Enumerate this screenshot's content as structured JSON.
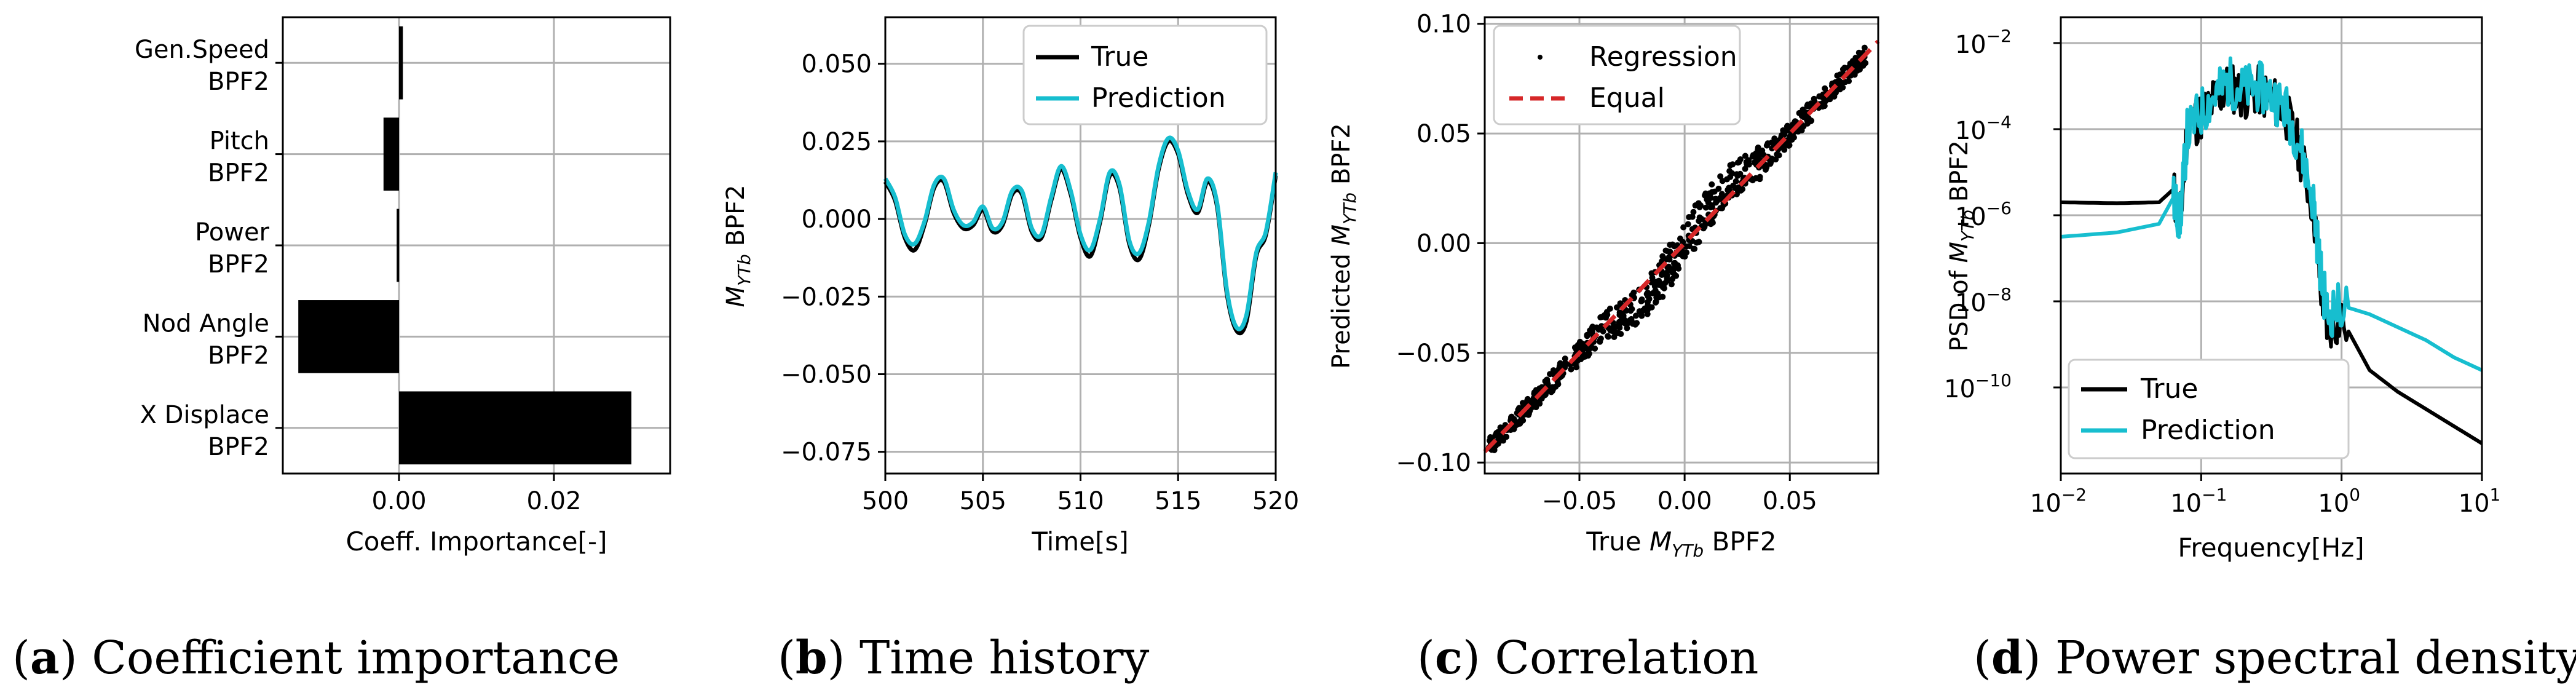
{
  "colors": {
    "true": "#000000",
    "prediction": "#17becf",
    "equal": "#d62728",
    "grid": "#b0b0b0"
  },
  "chart_data": [
    {
      "type": "bar",
      "orientation": "horizontal",
      "categories": [
        "Gen.Speed\nBPF2",
        "Pitch\nBPF2",
        "Power\nBPF2",
        "Nod Angle\nBPF2",
        "X Displace\nBPF2"
      ],
      "values": [
        0.0005,
        -0.002,
        -0.0003,
        -0.013,
        0.03
      ],
      "xlim": [
        -0.015,
        0.035
      ],
      "xticks": [
        "0.00",
        "0.02"
      ],
      "xlabel": "Coeff. Importance[-]",
      "grid": true,
      "caption_letter": "a",
      "caption_text": " Coefficient importance"
    },
    {
      "type": "line",
      "xlim": [
        500,
        520
      ],
      "ylim": [
        -0.082,
        0.065
      ],
      "xticks": [
        "500",
        "505",
        "510",
        "515",
        "520"
      ],
      "yticks": [
        "0.050",
        "0.025",
        "0.000",
        "−0.025",
        "−0.050",
        "−0.075"
      ],
      "xlabel": "Time[s]",
      "ylabel_prefix": "M",
      "ylabel_sub": "YTb",
      "ylabel_suffix": " BPF2",
      "legend": [
        "True",
        "Prediction"
      ],
      "legend_position": "top-right",
      "series": [
        {
          "name": "True",
          "x": [
            500,
            500.5,
            501,
            501.5,
            502,
            502.5,
            503,
            503.5,
            504,
            504.5,
            505,
            505.5,
            506,
            506.5,
            507,
            507.5,
            508,
            508.5,
            509,
            509.5,
            510,
            510.5,
            511,
            511.5,
            512,
            512.5,
            513,
            513.5,
            514,
            514.5,
            515,
            515.5,
            516,
            516.5,
            517,
            517.5,
            518,
            518.5,
            519,
            519.5,
            520
          ],
          "y": [
            0.012,
            0.006,
            -0.006,
            -0.01,
            -0.002,
            0.01,
            0.012,
            0.002,
            -0.003,
            -0.002,
            0.003,
            -0.004,
            -0.002,
            0.008,
            0.008,
            -0.004,
            -0.006,
            0.006,
            0.016,
            0.008,
            -0.006,
            -0.012,
            -0.001,
            0.014,
            0.01,
            -0.008,
            -0.013,
            -0.002,
            0.016,
            0.025,
            0.021,
            0.008,
            0.002,
            0.012,
            0.004,
            -0.024,
            -0.036,
            -0.033,
            -0.012,
            -0.005,
            0.014
          ]
        },
        {
          "name": "Prediction",
          "x": [
            500,
            500.5,
            501,
            501.5,
            502,
            502.5,
            503,
            503.5,
            504,
            504.5,
            505,
            505.5,
            506,
            506.5,
            507,
            507.5,
            508,
            508.5,
            509,
            509.5,
            510,
            510.5,
            511,
            511.5,
            512,
            512.5,
            513,
            513.5,
            514,
            514.5,
            515,
            515.5,
            516,
            516.5,
            517,
            517.5,
            518,
            518.5,
            519,
            519.5,
            520
          ],
          "y": [
            0.013,
            0.007,
            -0.005,
            -0.008,
            -0.001,
            0.011,
            0.013,
            0.003,
            -0.002,
            -0.001,
            0.004,
            -0.003,
            -0.001,
            0.009,
            0.009,
            -0.003,
            -0.005,
            0.007,
            0.017,
            0.009,
            -0.005,
            -0.01,
            0.0,
            0.015,
            0.011,
            -0.007,
            -0.011,
            -0.001,
            0.017,
            0.026,
            0.022,
            0.009,
            0.003,
            0.013,
            0.005,
            -0.023,
            -0.035,
            -0.031,
            -0.011,
            -0.004,
            0.015
          ]
        }
      ],
      "caption_letter": "b",
      "caption_text": " Time history"
    },
    {
      "type": "scatter",
      "xlim": [
        -0.095,
        0.092
      ],
      "ylim": [
        -0.105,
        0.103
      ],
      "xticks": [
        "−0.05",
        "0.00",
        "0.05"
      ],
      "yticks": [
        "0.10",
        "0.05",
        "0.00",
        "−0.05",
        "−0.10"
      ],
      "xlabel_prefix": "True ",
      "xlabel_var": "M",
      "xlabel_sub": "YTb",
      "xlabel_suffix": " BPF2",
      "ylabel_prefix": "Predicted ",
      "ylabel_var": "M",
      "ylabel_sub": "YTb",
      "ylabel_suffix": " BPF2",
      "legend": [
        "Regression",
        "Equal"
      ],
      "legend_position": "top-left",
      "equal_line": [
        [
          -0.095,
          -0.095
        ],
        [
          0.092,
          0.092
        ]
      ],
      "caption_letter": "c",
      "caption_text": " Correlation"
    },
    {
      "type": "line",
      "xscale": "log",
      "yscale": "log",
      "xlim_exp": [
        -2,
        1
      ],
      "ylim_exp": [
        -12,
        -1.4
      ],
      "xtick_exps": [
        "−2",
        "−1",
        "0",
        "1"
      ],
      "ytick_exps": [
        "−2",
        "−4",
        "−6",
        "−8",
        "−10"
      ],
      "tick_base": "10",
      "xlabel": "Frequency[Hz]",
      "ylabel_prefix": "PSD of ",
      "ylabel_var": "M",
      "ylabel_sub": "YTb",
      "ylabel_suffix": " BPF2",
      "legend": [
        "True",
        "Prediction"
      ],
      "legend_position": "bottom-left",
      "series": [
        {
          "name": "True",
          "log10_x": [
            -2,
            -1.6,
            -1.3,
            -1.2,
            -1.15,
            -1.1,
            -1.0,
            -0.9,
            -0.8,
            -0.7,
            -0.6,
            -0.5,
            -0.4,
            -0.3,
            -0.2,
            -0.15,
            -0.1,
            0,
            0.2,
            0.4,
            0.6,
            0.8,
            1.0
          ],
          "log10_y": [
            -5.7,
            -5.72,
            -5.7,
            -5.4,
            -6.2,
            -4.0,
            -3.7,
            -3.3,
            -3.0,
            -3.2,
            -3.1,
            -3.3,
            -3.6,
            -4.5,
            -5.8,
            -7.6,
            -8.6,
            -8.4,
            -9.6,
            -10.1,
            -10.5,
            -10.9,
            -11.3
          ]
        },
        {
          "name": "Prediction",
          "log10_x": [
            -2,
            -1.6,
            -1.3,
            -1.2,
            -1.15,
            -1.1,
            -1.0,
            -0.9,
            -0.8,
            -0.7,
            -0.6,
            -0.5,
            -0.4,
            -0.3,
            -0.2,
            -0.15,
            -0.1,
            0,
            0.2,
            0.4,
            0.6,
            0.8,
            1.0
          ],
          "log10_y": [
            -6.5,
            -6.4,
            -6.2,
            -5.6,
            -6.1,
            -4.1,
            -3.6,
            -3.2,
            -2.9,
            -3.1,
            -3.0,
            -3.2,
            -3.5,
            -4.3,
            -5.7,
            -7.3,
            -8.3,
            -8.1,
            -8.3,
            -8.6,
            -8.9,
            -9.3,
            -9.6
          ]
        }
      ],
      "caption_letter": "d",
      "caption_text": " Power spectral density"
    }
  ]
}
